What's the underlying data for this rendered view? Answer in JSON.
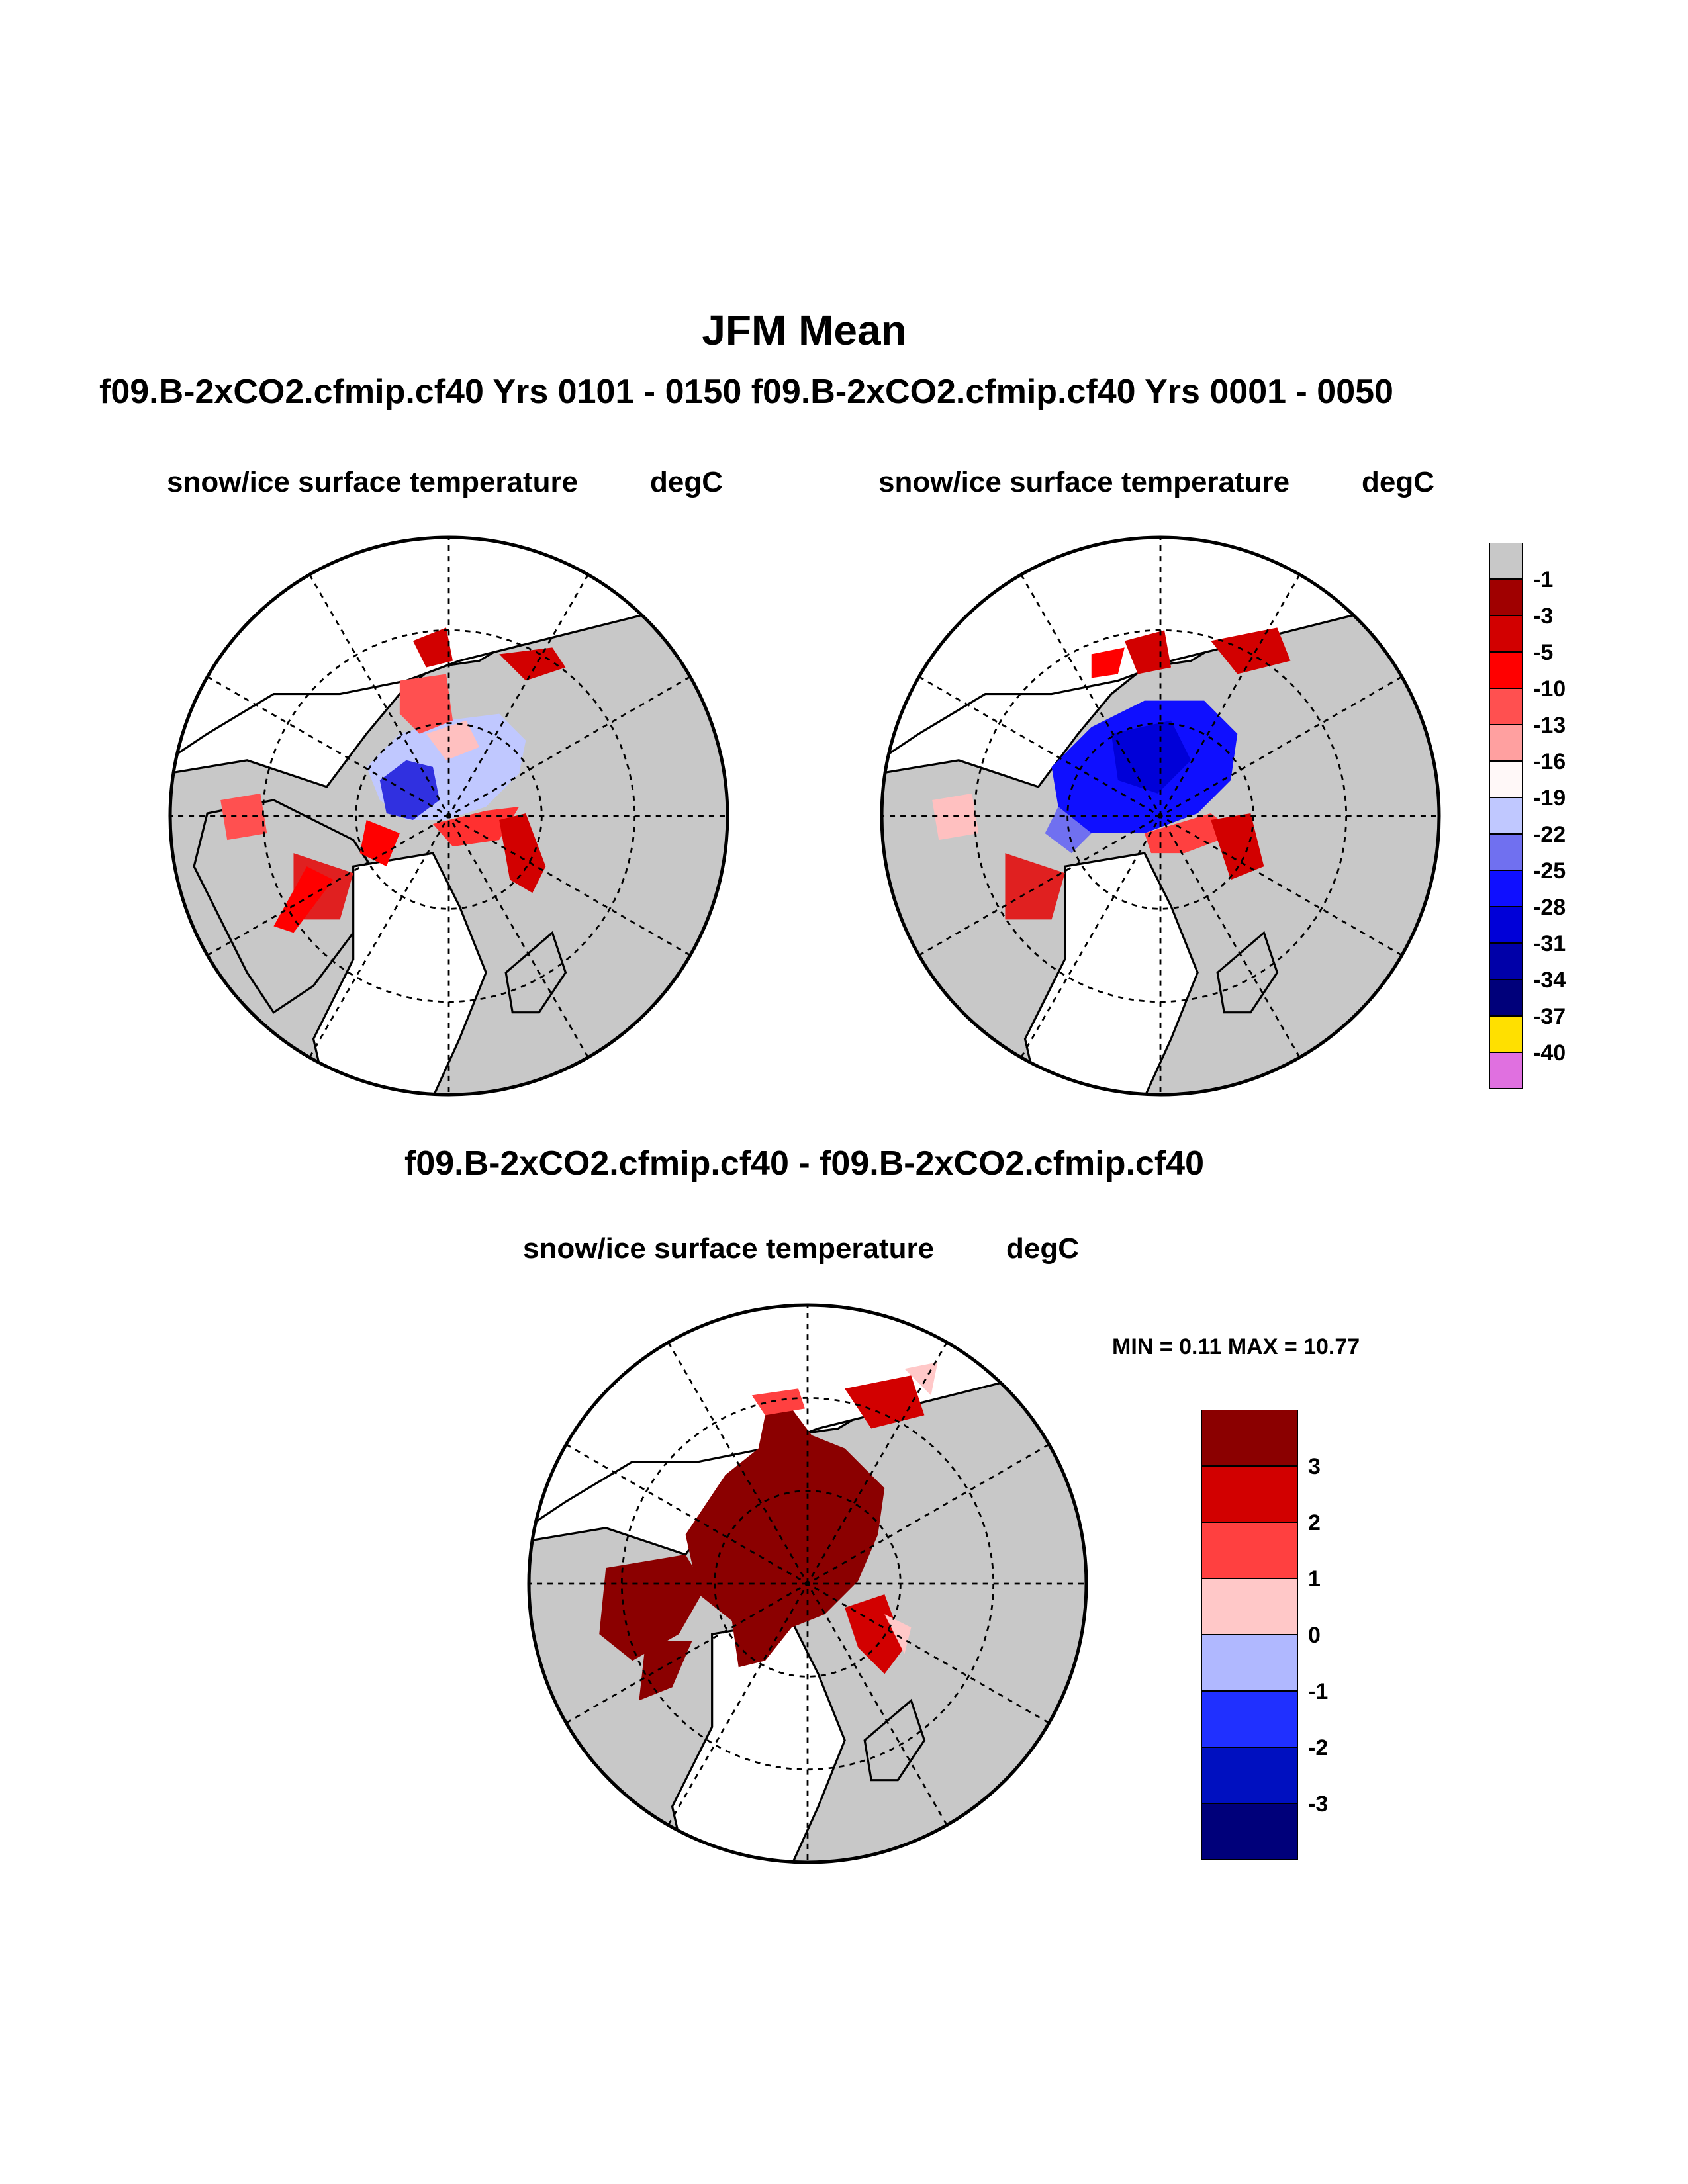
{
  "header": {
    "title": "JFM Mean",
    "subtitle": "f09.B-2xCO2.cfmip.cf40  Yrs 0101 - 0150 f09.B-2xCO2.cfmip.cf40  Yrs 0001 - 0050"
  },
  "panels": [
    {
      "variable": "snow/ice surface temperature",
      "units": "degC"
    },
    {
      "variable": "snow/ice surface temperature",
      "units": "degC"
    }
  ],
  "difference": {
    "title": "f09.B-2xCO2.cfmip.cf40 - f09.B-2xCO2.cfmip.cf40",
    "variable": "snow/ice surface temperature",
    "units": "degC",
    "min_max_text": "MIN =   0.11 MAX =  10.77"
  },
  "colorbar_main": {
    "labels": [
      "-1",
      "-3",
      "-5",
      "-10",
      "-13",
      "-16",
      "-19",
      "-22",
      "-25",
      "-28",
      "-31",
      "-34",
      "-37",
      "-40"
    ],
    "colors": [
      "#c8c8c8",
      "#a00000",
      "#d20000",
      "#ff0000",
      "#ff5050",
      "#ffa0a0",
      "#fff8f8",
      "#c0c8ff",
      "#7070f0",
      "#0f0fff",
      "#0000d8",
      "#0000a8",
      "#00007a",
      "#ffe000",
      "#e070e0"
    ]
  },
  "colorbar_diff": {
    "labels": [
      "3",
      "2",
      "1",
      "0",
      "-1",
      "-2",
      "-3"
    ],
    "colors": [
      "#8b0000",
      "#d20000",
      "#ff4040",
      "#ffc8c8",
      "#b0b8ff",
      "#2030ff",
      "#0010c0",
      "#00007a"
    ]
  },
  "colors": {
    "land": "#c8c8c8",
    "ocean": "#ffffff"
  }
}
